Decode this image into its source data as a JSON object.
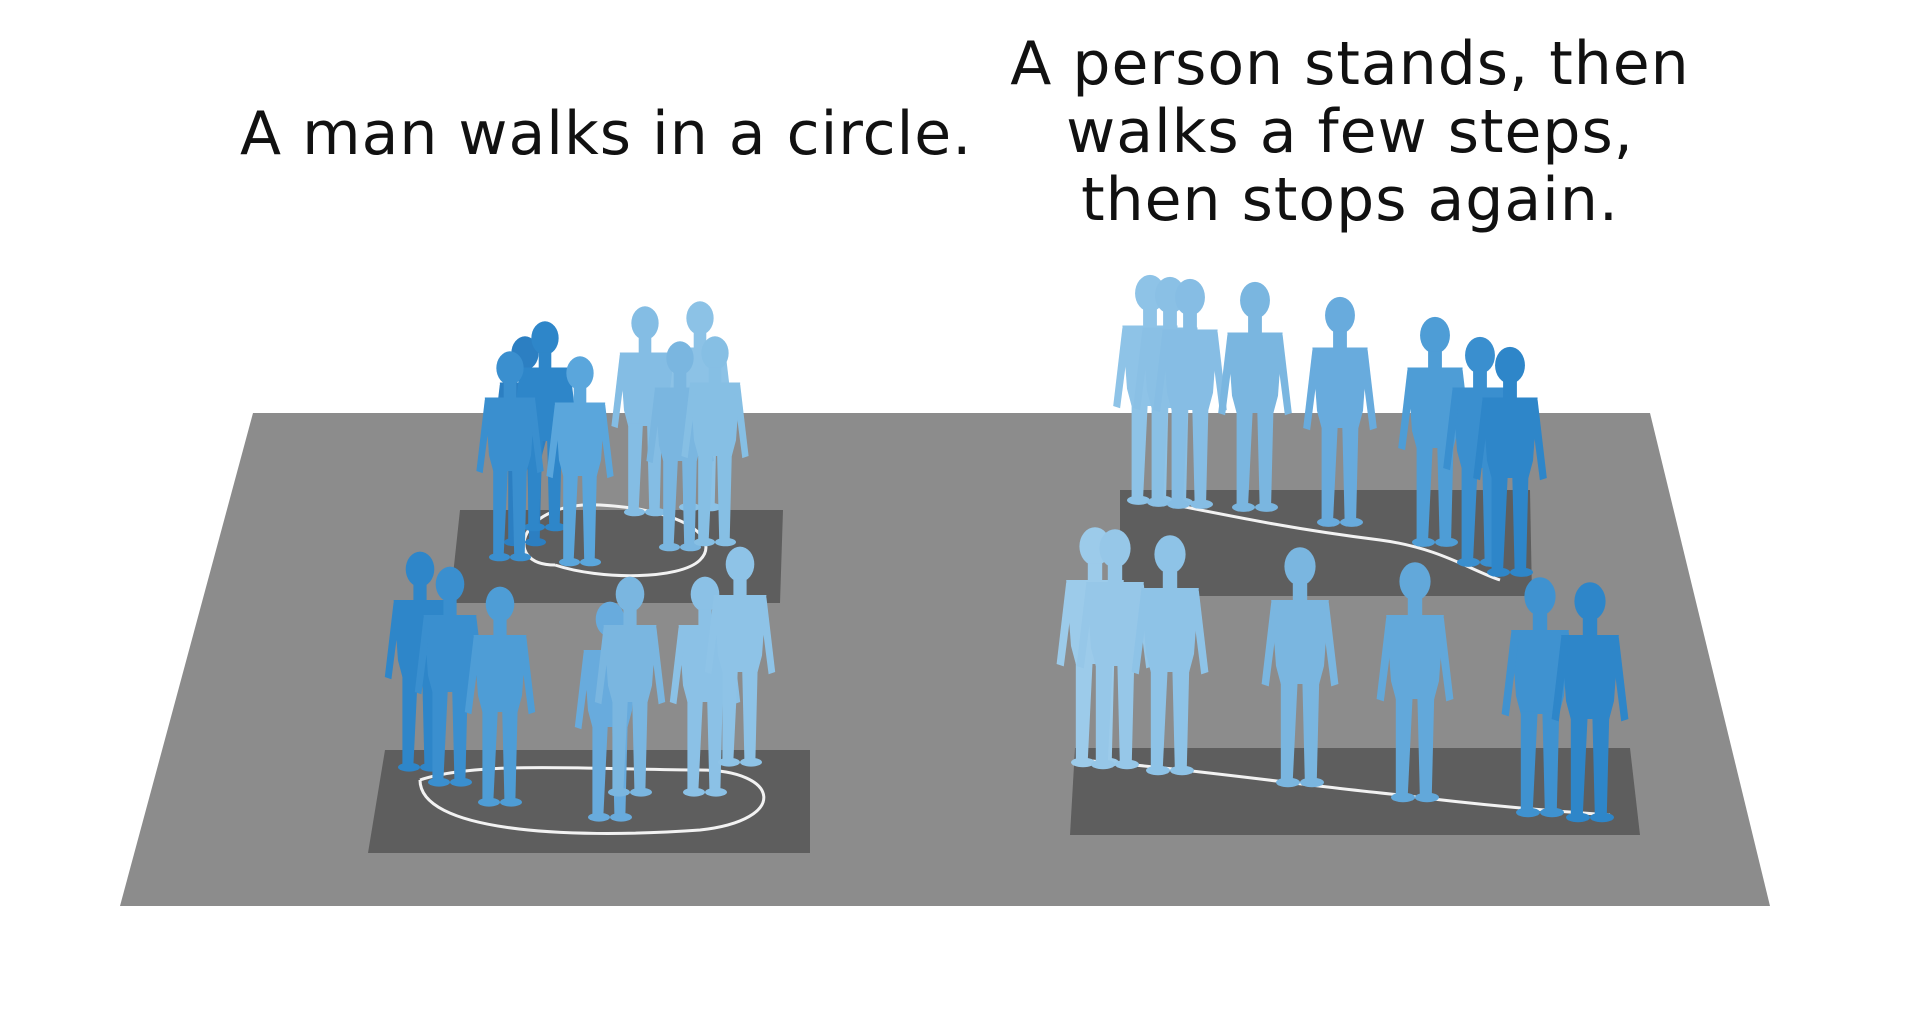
{
  "captions": {
    "left": "A man walks in a circle.",
    "right_lines": [
      "A person stands, then",
      "walks a few steps,",
      "then stops again."
    ]
  },
  "colors": {
    "ground": "#8c8c8c",
    "pad": "#5e5e5e",
    "path": "#f2f2f2",
    "figure_dark": "#2e86c9",
    "figure_light": "#7fb8e0"
  }
}
